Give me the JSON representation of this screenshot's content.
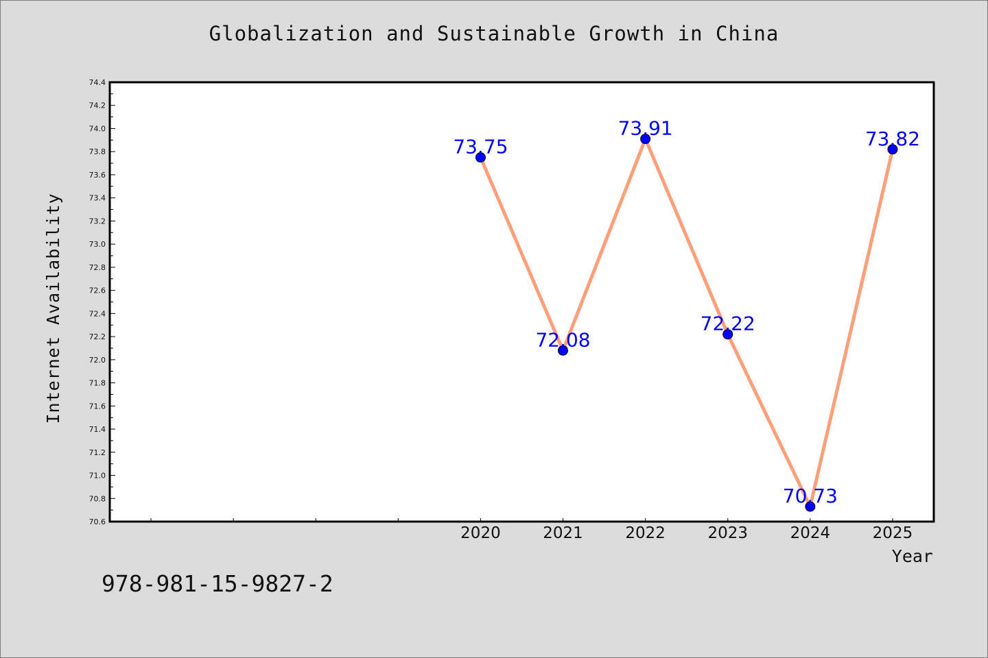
{
  "chart_data": {
    "type": "line",
    "title": "Globalization and Sustainable Growth in China",
    "xlabel": "Year",
    "ylabel": "Internet Availability",
    "x": [
      2020,
      2021,
      2022,
      2023,
      2024,
      2025
    ],
    "x_tick_labels": [
      "2020",
      "2021",
      "2022",
      "2023",
      "2024",
      "2025"
    ],
    "series": [
      {
        "values": [
          73.75,
          72.08,
          73.91,
          72.22,
          70.73,
          73.82
        ],
        "data_labels": [
          "73.75",
          "72.08",
          "73.91",
          "72.22",
          "70.73",
          "73.82"
        ],
        "line_color": "#ffa07a",
        "marker_color": "#0000ff"
      }
    ],
    "ylim": [
      70.6,
      74.4
    ],
    "xlim": [
      2015.5,
      2025.5
    ],
    "y_ticks": [
      "70.6",
      "70.8",
      "71.0",
      "71.2",
      "71.4",
      "71.6",
      "71.8",
      "72.0",
      "72.2",
      "72.4",
      "72.6",
      "72.8",
      "73.0",
      "73.2",
      "73.4",
      "73.6",
      "73.8",
      "74.0",
      "74.2",
      "74.4"
    ],
    "grid": false,
    "label_color": "#0000ff",
    "background": "#dcdcdc",
    "plot_background": "#ffffff"
  },
  "footer": {
    "code": "978-981-15-9827-2"
  }
}
